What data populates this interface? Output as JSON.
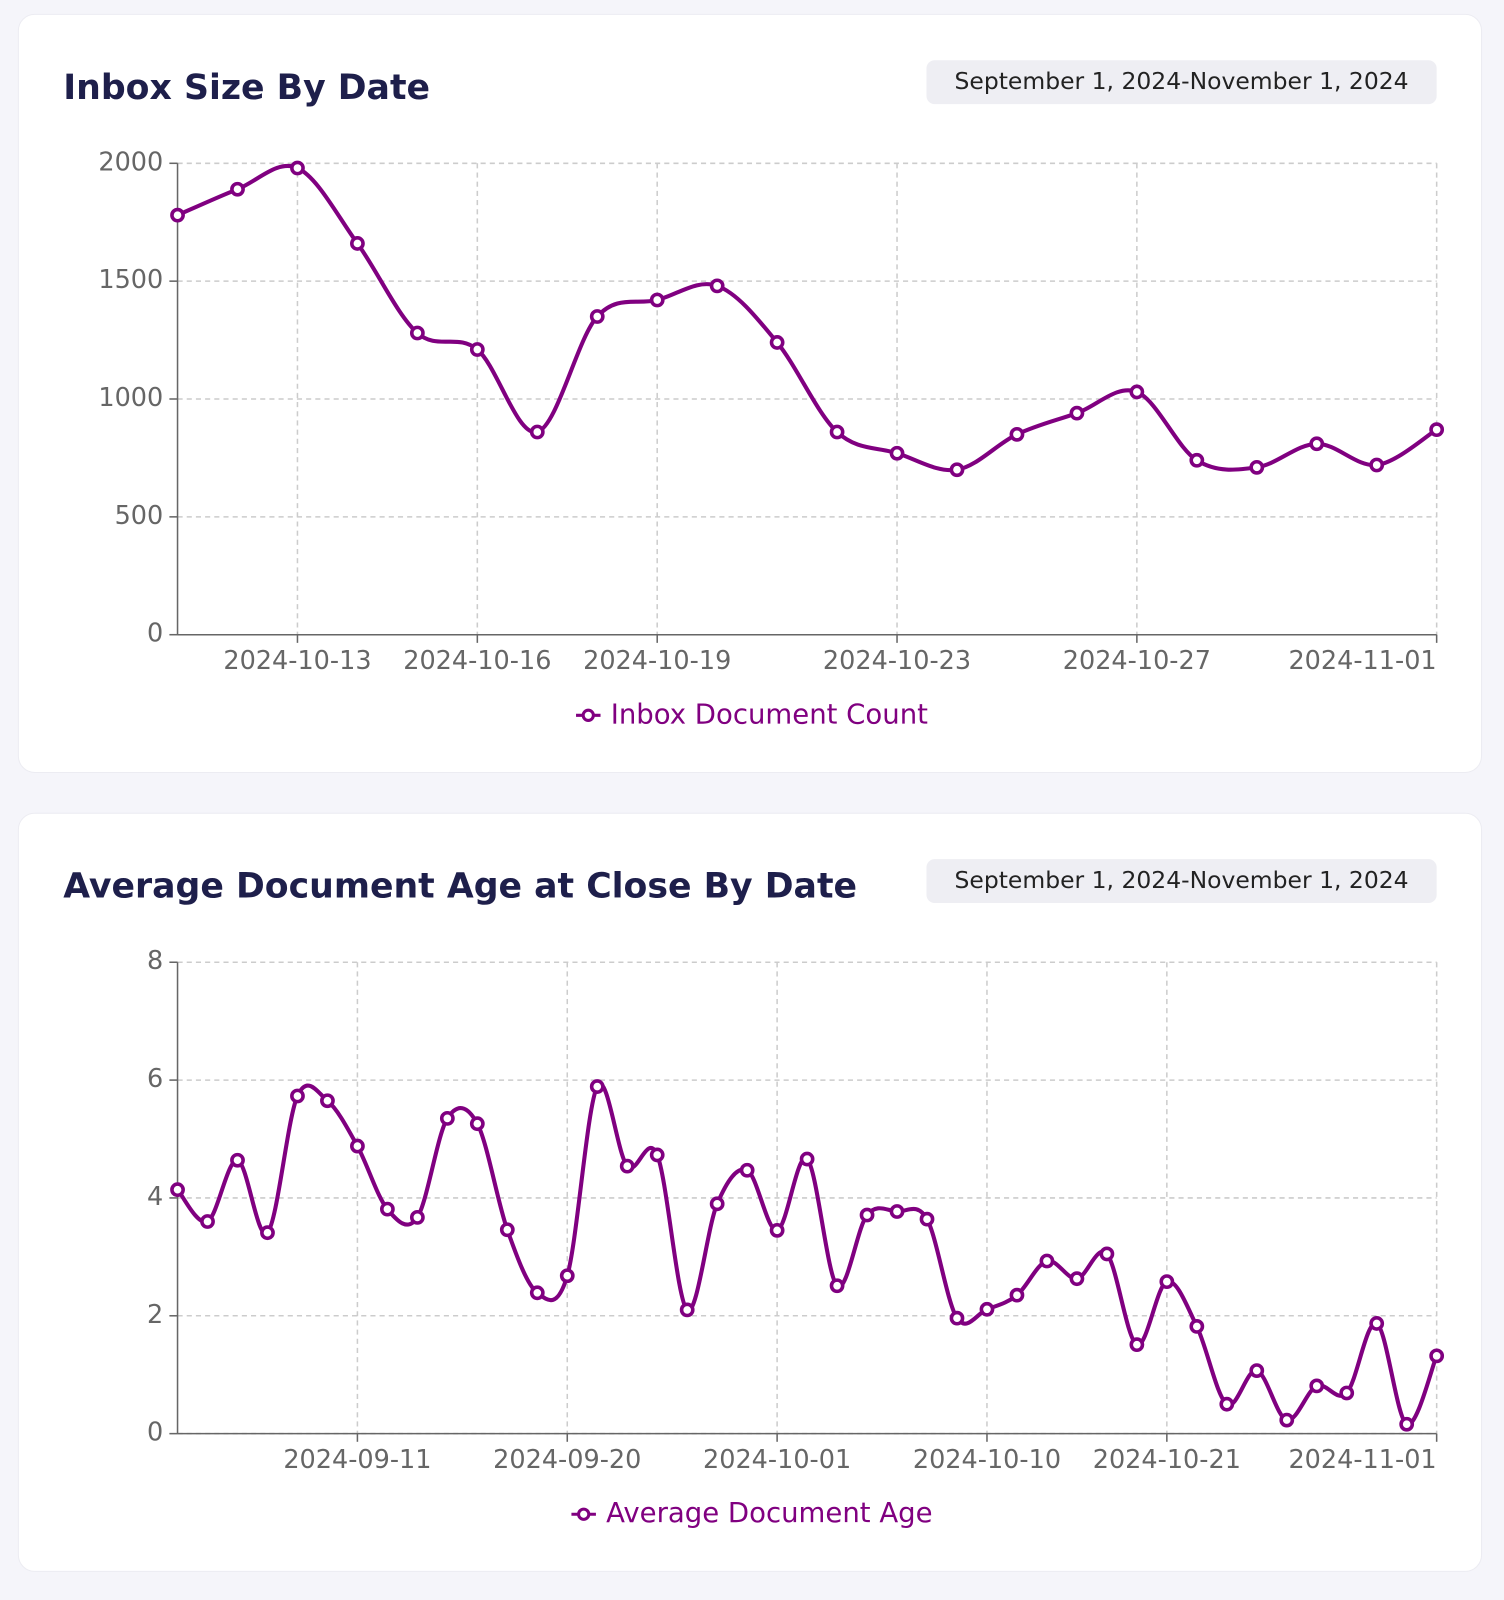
{
  "chart_data": [
    {
      "type": "line",
      "title": "Inbox Size By Date",
      "date_range": "September 1, 2024-November 1, 2024",
      "categories": [
        null,
        null,
        "2024-10-13",
        null,
        null,
        "2024-10-16",
        null,
        null,
        "2024-10-19",
        null,
        null,
        null,
        "2024-10-23",
        null,
        null,
        null,
        "2024-10-27",
        null,
        null,
        null,
        null,
        "2024-11-01"
      ],
      "series": [
        {
          "name": "Inbox Document Count",
          "color": "#800080",
          "values": [
            1780,
            1890,
            1980,
            1660,
            1280,
            1210,
            860,
            1350,
            1420,
            1480,
            1240,
            860,
            770,
            700,
            850,
            940,
            1030,
            740,
            710,
            810,
            720,
            870
          ]
        }
      ],
      "ylim": [
        0,
        2000
      ],
      "yticks": [
        0,
        500,
        1000,
        1500,
        2000
      ],
      "grid": true
    },
    {
      "type": "line",
      "title": "Average Document Age at Close By Date",
      "date_range": "September 1, 2024-November 1, 2024",
      "categories": [
        null,
        null,
        null,
        null,
        null,
        null,
        "2024-09-11",
        null,
        null,
        null,
        null,
        null,
        null,
        "2024-09-20",
        null,
        null,
        null,
        null,
        null,
        null,
        "2024-10-01",
        null,
        null,
        null,
        null,
        null,
        null,
        "2024-10-10",
        null,
        null,
        null,
        null,
        null,
        "2024-10-21",
        null,
        null,
        null,
        null,
        null,
        null,
        null,
        null,
        "2024-11-01"
      ],
      "series": [
        {
          "name": "Average Document Age",
          "color": "#800080",
          "values": [
            4.14,
            3.6,
            4.64,
            3.41,
            5.73,
            5.65,
            4.88,
            3.81,
            3.67,
            5.35,
            5.26,
            3.46,
            2.39,
            2.68,
            5.89,
            4.54,
            4.73,
            2.1,
            3.9,
            4.47,
            3.45,
            4.66,
            2.51,
            3.71,
            3.77,
            3.64,
            1.96,
            2.11,
            2.35,
            2.93,
            2.63,
            3.05,
            1.51,
            2.58,
            1.82,
            0.5,
            1.07,
            0.23,
            0.81,
            0.69,
            1.87,
            0.16,
            1.32
          ]
        }
      ],
      "ylim": [
        0,
        8
      ],
      "yticks": [
        0,
        2,
        4,
        6,
        8
      ],
      "grid": true
    }
  ]
}
